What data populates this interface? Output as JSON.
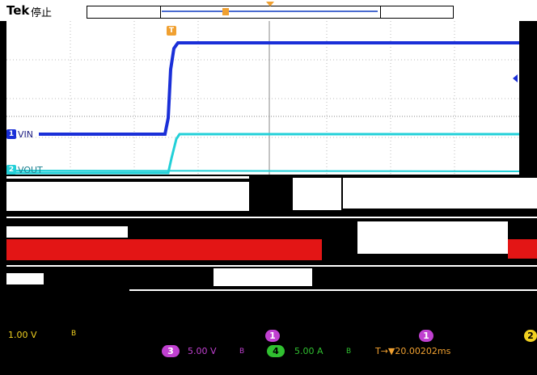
{
  "header": {
    "brand": "Tek",
    "status": "停止",
    "trigger_marker_mini": "T"
  },
  "graticule": {
    "trigger_marker": "T",
    "channels": [
      {
        "id": "1",
        "label": "VIN",
        "color": "#1a2fd8"
      },
      {
        "id": "2",
        "label": "VOUT",
        "color": "#22d0d8"
      }
    ]
  },
  "readouts": {
    "ch1_scale": "1.00 V",
    "ch1_bw": "B",
    "ch3_id": "3",
    "ch3_scale": "5.00 V",
    "ch3_bw": "B",
    "ch4_id": "4",
    "ch4_scale": "5.00 A",
    "ch4_bw": "B",
    "trigger_time": "T→▼20.00202ms",
    "ch_tag_right": "2",
    "ch_tag_mid": "1"
  },
  "colors": {
    "ch1": "#1a2fd8",
    "ch2": "#22d0d8",
    "ch3": "#c040d0",
    "ch4": "#30c030",
    "trigger": "#f0a030",
    "red_band": "#e31515"
  }
}
